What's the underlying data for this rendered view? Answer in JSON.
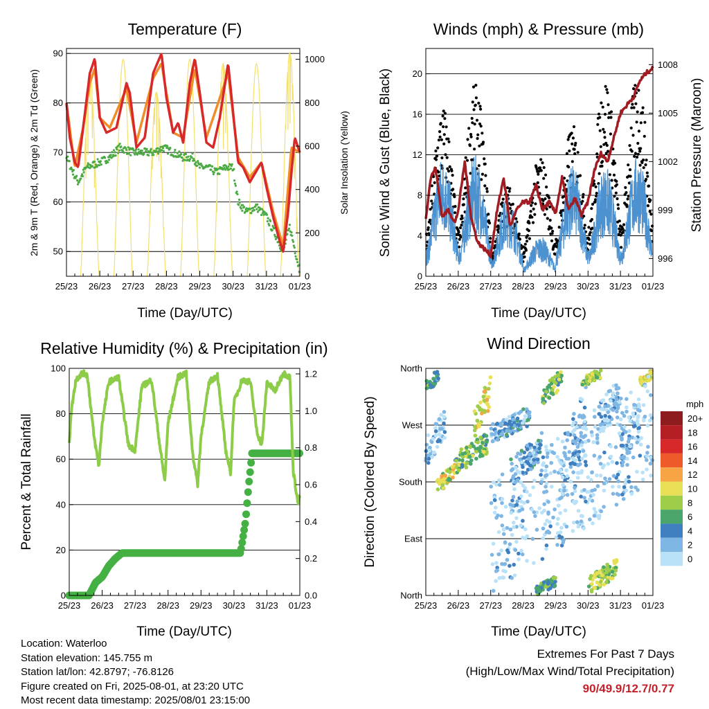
{
  "panels": {
    "temperature": {
      "title": "Temperature (F)",
      "xlabel": "Time (Day/UTC)",
      "ylabel_left": "2m & 9m T (Red, Orange) & 2m Td (Green)",
      "ylabel_right": "Solar Insolation (Yellow)",
      "left_ticks": [
        "90",
        "80",
        "70",
        "60",
        "50"
      ],
      "right_ticks": [
        "1000",
        "800",
        "600",
        "400",
        "200",
        "0"
      ]
    },
    "winds": {
      "title": "Winds (mph) & Pressure (mb)",
      "xlabel": "Time (Day/UTC)",
      "ylabel_left": "Sonic Wind & Gust (Blue, Black)",
      "ylabel_right": "Station Pressure (Maroon)",
      "left_ticks": [
        "20",
        "16",
        "12",
        "8",
        "4",
        "0"
      ],
      "right_ticks": [
        "1008",
        "1005",
        "1002",
        "999",
        "996"
      ]
    },
    "humidity": {
      "title": "Relative Humidity (%) & Precipitation (in)",
      "xlabel": "Time (Day/UTC)",
      "ylabel_left": "Percent & Total Rainfall",
      "left_ticks": [
        "100",
        "80",
        "60",
        "40",
        "20",
        "0"
      ],
      "right_ticks": [
        "1.2",
        "1.0",
        "0.8",
        "0.6",
        "0.4",
        "0.2",
        "0.0"
      ]
    },
    "direction": {
      "title": "Wind Direction",
      "xlabel": "Time (Day/UTC)",
      "ylabel_left": "Direction (Colored By Speed)",
      "left_ticks": [
        "North",
        "West",
        "South",
        "East",
        "North"
      ]
    }
  },
  "x_ticks": [
    "25/23",
    "26/23",
    "27/23",
    "28/23",
    "29/23",
    "30/23",
    "31/23",
    "01/23"
  ],
  "legend": {
    "unit": "mph",
    "labels": [
      "20+",
      "18",
      "16",
      "14",
      "12",
      "10",
      "8",
      "6",
      "4",
      "2",
      "0"
    ],
    "colors": [
      "#8e1b1e",
      "#b41f24",
      "#d7282a",
      "#ef5a2a",
      "#f7a445",
      "#e9df56",
      "#9ecd4a",
      "#4aa66b",
      "#3f7fbf",
      "#7fb6e3",
      "#b9e1f7"
    ]
  },
  "info": {
    "location": "Location: Waterloo",
    "elevation": "Station elevation: 145.755 m",
    "latlon": "Station lat/lon: 42.8797; -76.8126",
    "created": "Figure created on Fri, 2025-08-01, at 23:20 UTC",
    "recent": "Most recent data timestamp: 2025/08/01 23:15:00"
  },
  "extremes": {
    "line1": "Extremes For Past 7 Days",
    "line2": "(High/Low/Max Wind/Total Precipitation)",
    "values": "90/49.9/12.7/0.77"
  },
  "colors": {
    "temp_2m": "#d7282a",
    "temp_9m": "#f08c2a",
    "dewpoint": "#4caa44",
    "solar": "#f3df6b",
    "wind": "#4d92d0",
    "gust": "#000000",
    "pressure": "#a01c22",
    "rh": "#8ccc48",
    "precip": "#45b043"
  },
  "chart_data": [
    {
      "type": "line",
      "title": "Temperature (F)",
      "xlabel": "Time (Day/UTC)",
      "ylabel": "2m & 9m T (Red, Orange) & 2m Td (Green)",
      "y2label": "Solar Insolation (Yellow)",
      "x_range_days": [
        0,
        7
      ],
      "ylim": [
        45,
        91
      ],
      "y2lim": [
        0,
        1050
      ],
      "series": [
        {
          "name": "2m T",
          "color": "#d7282a",
          "x": [
            0,
            0.1,
            0.25,
            0.35,
            0.5,
            0.7,
            0.85,
            1.0,
            1.2,
            1.5,
            1.8,
            1.9,
            2.1,
            2.35,
            2.6,
            2.85,
            3.0,
            3.2,
            3.35,
            3.5,
            3.7,
            3.85,
            4.0,
            4.2,
            4.4,
            4.6,
            4.85,
            5.0,
            5.15,
            5.3,
            5.5,
            5.85,
            6.0,
            6.2,
            6.4,
            6.5,
            6.65,
            6.75,
            6.85,
            7.0
          ],
          "y": [
            80,
            73,
            68,
            67,
            75,
            86,
            89,
            77,
            74,
            75,
            84,
            82,
            71,
            73,
            86,
            90,
            81,
            74,
            76,
            72,
            84,
            89,
            82,
            72,
            71,
            77,
            88,
            78,
            68,
            67,
            64,
            68,
            63,
            57,
            52,
            50,
            58,
            66,
            73,
            70
          ]
        },
        {
          "name": "9m T",
          "color": "#f08c2a",
          "x": [
            0,
            0.25,
            0.5,
            0.7,
            0.85,
            1.0,
            1.3,
            1.8,
            2.1,
            2.6,
            2.85,
            3.2,
            3.5,
            3.85,
            4.2,
            4.85,
            5.15,
            5.5,
            5.85,
            6.2,
            6.5,
            6.75,
            7.0
          ],
          "y": [
            80,
            67,
            75,
            84,
            87,
            77,
            75,
            83,
            72,
            85,
            88,
            74,
            73,
            87,
            73,
            86,
            69,
            65,
            68,
            58,
            51,
            71,
            70
          ]
        },
        {
          "name": "2m Td",
          "color": "#4caa44",
          "x": [
            0,
            0.2,
            0.35,
            0.6,
            1.0,
            1.3,
            1.6,
            2.0,
            2.3,
            2.6,
            2.9,
            3.2,
            3.5,
            3.8,
            4.0,
            4.2,
            4.5,
            4.8,
            5.0,
            5.15,
            5.4,
            5.7,
            6.0,
            6.3,
            6.5,
            6.7,
            6.9,
            7.0
          ],
          "y": [
            69,
            66,
            64,
            67,
            68,
            69,
            71,
            70,
            70,
            70,
            71,
            70,
            69,
            69,
            67,
            67,
            66,
            67,
            67,
            60,
            58,
            59,
            57,
            53,
            50,
            55,
            49,
            46
          ]
        },
        {
          "name": "Solar",
          "color": "#f3df6b",
          "axis": "right",
          "days": [
            0,
            1,
            2,
            3,
            4,
            5,
            6
          ],
          "peaks": [
            940,
            1000,
            850,
            1000,
            980,
            980,
            1030
          ]
        }
      ]
    },
    {
      "type": "scatter",
      "title": "Winds (mph) & Pressure (mb)",
      "xlabel": "Time (Day/UTC)",
      "ylabel": "Sonic Wind & Gust (Blue, Black)",
      "y2label": "Station Pressure (Maroon)",
      "x_range_days": [
        0,
        7
      ],
      "ylim": [
        0,
        22.5
      ],
      "y2lim": [
        994.9,
        1009
      ],
      "series": [
        {
          "name": "Sonic Wind",
          "color": "#4d92d0",
          "daily_peak": [
            12,
            12,
            8,
            4,
            11,
            11,
            12
          ]
        },
        {
          "name": "Gust",
          "color": "#000000",
          "daily_peak": [
            17,
            19,
            9,
            12,
            15,
            20,
            20
          ]
        },
        {
          "name": "Pressure",
          "color": "#a01c22",
          "axis": "right",
          "x": [
            0,
            0.15,
            0.3,
            0.5,
            0.7,
            0.9,
            1.0,
            1.2,
            1.4,
            1.6,
            1.8,
            2.0,
            2.2,
            2.4,
            2.6,
            2.8,
            3.0,
            3.2,
            3.4,
            3.6,
            3.8,
            4.0,
            4.2,
            4.4,
            4.6,
            4.8,
            5.0,
            5.2,
            5.4,
            5.6,
            5.8,
            6.0,
            6.2,
            6.4,
            6.6,
            6.8,
            7.0
          ],
          "y": [
            998.5,
            1001,
            1001.6,
            998.6,
            999,
            998.2,
            999,
            1002,
            998.5,
            997,
            996.6,
            996.2,
            999,
            1001,
            998,
            999,
            999.5,
            999.5,
            1000.5,
            999,
            999.5,
            998.8,
            1001,
            999,
            999.7,
            998.7,
            999.5,
            1001.5,
            1002.5,
            1002,
            1003.5,
            1005,
            1005.5,
            1006,
            1007,
            1007.5,
            1007.8
          ]
        }
      ]
    },
    {
      "type": "line",
      "title": "Relative Humidity (%) & Precipitation (in)",
      "xlabel": "Time (Day/UTC)",
      "ylabel": "Percent & Total Rainfall",
      "x_range_days": [
        0,
        7
      ],
      "ylim": [
        0,
        100
      ],
      "y2lim": [
        0,
        1.23
      ],
      "series": [
        {
          "name": "RH",
          "color": "#8ccc48",
          "x": [
            0,
            0.05,
            0.2,
            0.4,
            0.55,
            0.75,
            0.9,
            1.0,
            1.2,
            1.5,
            1.8,
            2.0,
            2.2,
            2.5,
            2.75,
            2.9,
            3.0,
            3.3,
            3.55,
            3.75,
            3.9,
            4.0,
            4.25,
            4.5,
            4.75,
            4.9,
            5.0,
            5.25,
            5.5,
            5.7,
            5.85,
            6.0,
            6.25,
            6.5,
            6.7,
            6.8,
            6.95,
            7.0
          ],
          "y": [
            66,
            80,
            95,
            98,
            97,
            70,
            57,
            76,
            94,
            96,
            66,
            64,
            92,
            95,
            66,
            50,
            76,
            96,
            98,
            62,
            49,
            70,
            94,
            97,
            64,
            54,
            85,
            95,
            94,
            72,
            66,
            94,
            90,
            98,
            96,
            55,
            40,
            44
          ]
        },
        {
          "name": "Total Rainfall",
          "color": "#45b043",
          "axis": "right",
          "x": [
            0,
            0.6,
            0.8,
            1.0,
            1.2,
            1.4,
            1.6,
            1.8,
            2.0,
            5.0,
            5.2,
            5.35,
            5.45,
            5.55,
            5.65,
            7.0
          ],
          "y": [
            0.0,
            0.0,
            0.07,
            0.1,
            0.16,
            0.2,
            0.23,
            0.23,
            0.23,
            0.23,
            0.23,
            0.4,
            0.6,
            0.77,
            0.77,
            0.77
          ]
        }
      ]
    },
    {
      "type": "scatter",
      "title": "Wind Direction",
      "xlabel": "Time (Day/UTC)",
      "ylabel": "Direction (Colored By Speed)",
      "x_range_days": [
        0,
        7
      ],
      "y_categories": [
        "North",
        "East",
        "South",
        "West",
        "North"
      ],
      "color_scale_mph": [
        0,
        20
      ]
    }
  ]
}
